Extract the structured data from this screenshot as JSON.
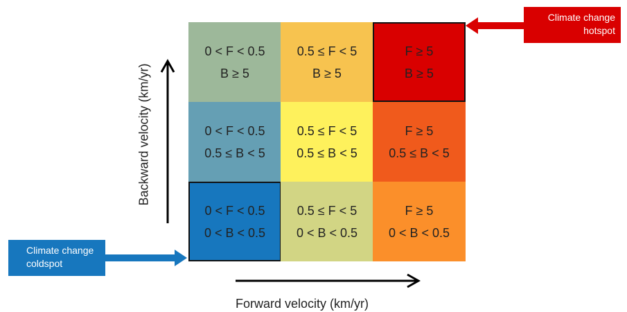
{
  "axes": {
    "x_label": "Forward velocity (km/yr)",
    "y_label": "Backward velocity (km/yr)"
  },
  "cells": [
    {
      "row": 0,
      "col": 0,
      "line1": "0 < F < 0.5",
      "line2": "B ≥ 5",
      "color": "#9DB89A"
    },
    {
      "row": 0,
      "col": 1,
      "line1": "0.5 ≤ F < 5",
      "line2": "B ≥ 5",
      "color": "#F7C34F"
    },
    {
      "row": 0,
      "col": 2,
      "line1": "F ≥ 5",
      "line2": "B ≥ 5",
      "color": "#D90000"
    },
    {
      "row": 1,
      "col": 0,
      "line1": "0 < F < 0.5",
      "line2": "0.5 ≤ B < 5",
      "color": "#659FB4"
    },
    {
      "row": 1,
      "col": 1,
      "line1": "0.5 ≤ F < 5",
      "line2": "0.5 ≤ B < 5",
      "color": "#FEF15C"
    },
    {
      "row": 1,
      "col": 2,
      "line1": "F ≥ 5",
      "line2": "0.5 ≤ B < 5",
      "color": "#F05A1C"
    },
    {
      "row": 2,
      "col": 0,
      "line1": "0 < F < 0.5",
      "line2": "0 < B < 0.5",
      "color": "#1777BE"
    },
    {
      "row": 2,
      "col": 1,
      "line1": "0.5 ≤ F < 5",
      "line2": "0 < B < 0.5",
      "color": "#D2D584"
    },
    {
      "row": 2,
      "col": 2,
      "line1": "F ≥ 5",
      "line2": "0 < B < 0.5",
      "color": "#FB8F2A"
    }
  ],
  "callouts": {
    "hotspot": {
      "line1": "Climate change",
      "line2": "hotspot",
      "color": "#D90000"
    },
    "coldspot": {
      "line1": "Climate change",
      "line2": "coldspot",
      "color": "#1777BE"
    }
  }
}
